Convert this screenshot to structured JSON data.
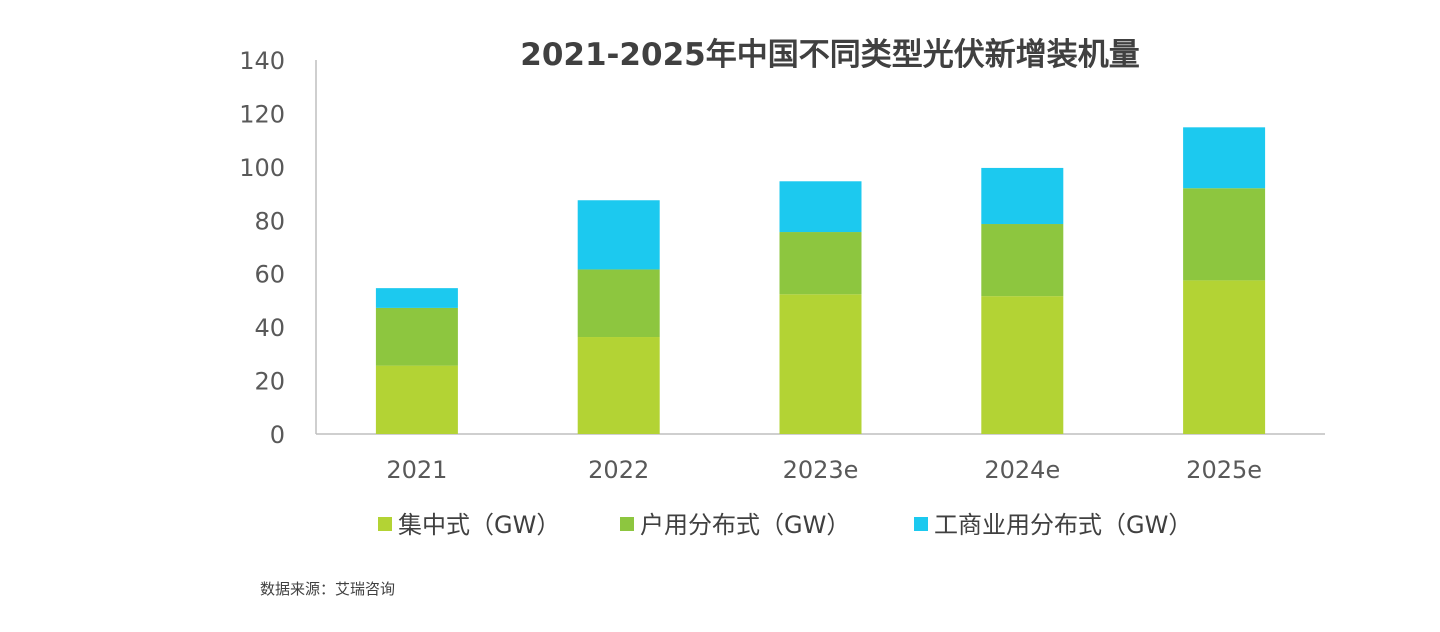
{
  "chart_data": {
    "type": "stacked_bar",
    "title": "2021-2025年中国不同类型光伏新增装机量",
    "categories": [
      "2021",
      "2022",
      "2023e",
      "2024e",
      "2025e"
    ],
    "series": [
      {
        "name": "集中式（GW）",
        "color": "#b3d334",
        "values": [
          25.6,
          36.3,
          52.3,
          51.6,
          57.5
        ]
      },
      {
        "name": "户用分布式（GW）",
        "color": "#8dc63f",
        "values": [
          21.6,
          25.3,
          23.3,
          27.0,
          34.5
        ]
      },
      {
        "name": "工商业用分布式（GW）",
        "color": "#1cc9ef",
        "values": [
          7.4,
          25.9,
          19.0,
          21.0,
          22.8
        ]
      }
    ],
    "ylim": [
      0,
      140
    ],
    "yticks": [
      0,
      20,
      40,
      60,
      80,
      100,
      120,
      140
    ],
    "legend_position": "bottom",
    "grid": false
  },
  "source_note": "数据来源：艾瑞咨询"
}
